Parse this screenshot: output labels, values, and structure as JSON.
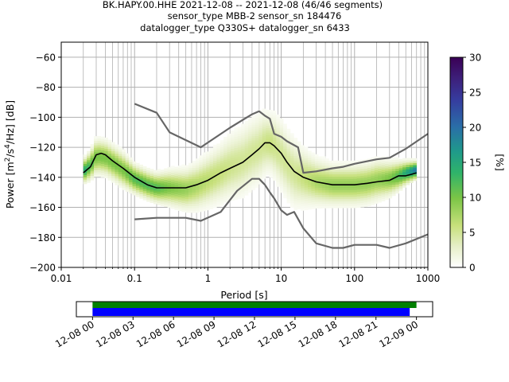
{
  "title_lines": [
    "BK.HAPY.00.HHE   2021-12-08 -- 2021-12-08  (46/46 segments)",
    "sensor_type MBB-2 sensor_sn 184476",
    "datalogger_type Q330S+ datalogger_sn 6433"
  ],
  "chart_data": [
    {
      "type": "heatmap",
      "xlabel": "Period [s]",
      "ylabel_parts": [
        "Power [m",
        "2",
        "/s",
        "4",
        "/Hz] [dB]"
      ],
      "xscale": "log",
      "xlim": [
        0.01,
        1000
      ],
      "ylim": [
        -200,
        -50
      ],
      "x_ticks": [
        0.01,
        0.1,
        1,
        10,
        100,
        1000
      ],
      "x_tick_labels": [
        "0.01",
        "0.1",
        "1",
        "10",
        "100",
        "1000"
      ],
      "y_ticks": [
        -200,
        -180,
        -160,
        -140,
        -120,
        -100,
        -80,
        -60
      ],
      "y_tick_labels": [
        "−200",
        "−180",
        "−160",
        "−140",
        "−120",
        "−100",
        "−80",
        "−60"
      ],
      "grid": true,
      "colorbar": {
        "label": "[%]",
        "range": [
          0,
          30
        ],
        "ticks": [
          0,
          5,
          10,
          15,
          20,
          25,
          30
        ],
        "tick_labels": [
          "0",
          "5",
          "10",
          "15",
          "20",
          "25",
          "30"
        ]
      },
      "density_band": {
        "period": [
          0.02,
          0.025,
          0.03,
          0.04,
          0.05,
          0.07,
          0.1,
          0.15,
          0.2,
          0.3,
          0.5,
          0.7,
          1,
          1.5,
          2,
          3,
          4,
          5,
          6,
          7,
          8,
          10,
          12,
          15,
          20,
          30,
          50,
          70,
          100,
          150,
          200,
          300,
          400,
          500,
          700
        ],
        "center": [
          -136,
          -132,
          -126,
          -127,
          -130,
          -135,
          -141,
          -145,
          -147,
          -147,
          -148,
          -146,
          -142,
          -137,
          -133,
          -129,
          -124,
          -121,
          -117,
          -117,
          -119,
          -125,
          -131,
          -137,
          -140,
          -143,
          -145,
          -145,
          -145,
          -144,
          -142,
          -141,
          -139,
          -137,
          -135
        ],
        "spread": [
          4,
          5,
          6,
          6,
          6,
          6,
          5,
          5,
          5,
          6,
          7,
          8,
          9,
          10,
          11,
          12,
          12,
          12,
          11,
          10,
          11,
          12,
          12,
          12,
          10,
          8,
          7,
          7,
          7,
          7,
          7,
          6,
          5,
          4,
          3
        ]
      },
      "series": [
        {
          "name": "",
          "color": "#000000",
          "x": [
            0.02,
            0.025,
            0.03,
            0.035,
            0.04,
            0.05,
            0.07,
            0.1,
            0.15,
            0.2,
            0.3,
            0.5,
            0.7,
            1,
            1.5,
            2,
            3,
            4,
            5,
            6,
            7,
            8,
            10,
            12,
            15,
            20,
            30,
            50,
            70,
            100,
            150,
            200,
            300,
            400,
            500,
            600,
            700
          ],
          "y": [
            -137,
            -133,
            -125,
            -124,
            -125,
            -129,
            -134,
            -140,
            -145,
            -147,
            -147,
            -147,
            -145,
            -142,
            -137,
            -134,
            -130,
            -125,
            -121,
            -117,
            -117,
            -119,
            -124,
            -130,
            -136,
            -140,
            -143,
            -145,
            -145,
            -145,
            -144,
            -143,
            -142,
            -139,
            -139,
            -138,
            -137
          ]
        },
        {
          "name": "",
          "color": "#666666",
          "x": [
            0.1,
            0.2,
            0.3,
            0.8,
            2,
            4,
            5,
            6,
            7,
            8,
            10,
            12,
            17,
            20,
            30,
            50,
            70,
            100,
            200,
            300,
            500,
            1000
          ],
          "y": [
            -91,
            -97,
            -110,
            -120,
            -107,
            -98,
            -96,
            -99,
            -101,
            -111,
            -113,
            -116,
            -120,
            -137,
            -136,
            -134,
            -133,
            -131,
            -128,
            -127,
            -121,
            -111
          ]
        },
        {
          "name": "",
          "color": "#666666",
          "x": [
            0.1,
            0.2,
            0.3,
            0.5,
            0.8,
            1.5,
            2.5,
            4,
            5,
            6,
            7,
            8,
            10,
            12,
            15,
            20,
            30,
            50,
            70,
            100,
            150,
            200,
            300,
            500,
            1000
          ],
          "y": [
            -168,
            -167,
            -167,
            -167,
            -169,
            -163,
            -149,
            -141,
            -141,
            -145,
            -150,
            -154,
            -162,
            -165,
            -163,
            -174,
            -184,
            -187,
            -187,
            -185,
            -185,
            -185,
            -187,
            -184,
            -178
          ]
        }
      ]
    },
    {
      "type": "timeline",
      "x_tick_labels": [
        "12-08 00",
        "12-08 03",
        "12-08 06",
        "12-08 09",
        "12-08 12",
        "12-08 15",
        "12-08 18",
        "12-08 21",
        "12-09 00"
      ],
      "x_ticks_hours": [
        0,
        3,
        6,
        9,
        12,
        15,
        18,
        21,
        24
      ],
      "xlim_hours": [
        -1.2,
        25.2
      ],
      "bars": [
        {
          "color": "#008000",
          "start_hour": 0,
          "end_hour": 24
        },
        {
          "color": "#0000ff",
          "start_hour": 0,
          "end_hour": 23.5
        }
      ]
    }
  ]
}
